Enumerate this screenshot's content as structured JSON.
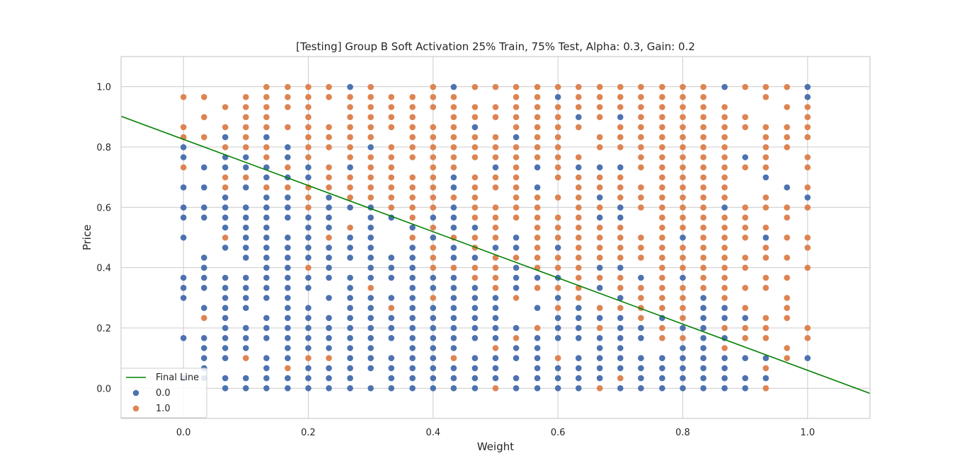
{
  "chart_data": {
    "type": "scatter",
    "title": "[Testing] Group B Soft Activation 25% Train, 75% Test, Alpha: 0.3, Gain: 0.2",
    "xlabel": "Weight",
    "ylabel": "Price",
    "xlim": [
      -0.1,
      1.1
    ],
    "ylim": [
      -0.1,
      1.1
    ],
    "xticks": [
      0.0,
      0.2,
      0.4,
      0.6,
      0.8,
      1.0
    ],
    "xtick_labels": [
      "0.0",
      "0.2",
      "0.4",
      "0.6",
      "0.8",
      "1.0"
    ],
    "yticks": [
      0.0,
      0.2,
      0.4,
      0.6,
      0.8,
      1.0
    ],
    "ytick_labels": [
      "0.0",
      "0.2",
      "0.4",
      "0.6",
      "0.8",
      "1.0"
    ],
    "grid": true,
    "legend_position": "lower-left",
    "background": "#ffffff",
    "grid_color": "#cccccc",
    "line": {
      "name": "Final Line",
      "color": "#008000",
      "x": [
        -0.1,
        1.1
      ],
      "y": [
        0.902,
        -0.017
      ]
    },
    "series": [
      {
        "name": "0.0",
        "color": "#4c72b0",
        "decision_rule": "below_line",
        "x_values": [
          0.0,
          0.033,
          0.067,
          0.1,
          0.133,
          0.167,
          0.2,
          0.233,
          0.267,
          0.3,
          0.333,
          0.367,
          0.4,
          0.433,
          0.467,
          0.5,
          0.533,
          0.567,
          0.6,
          0.633,
          0.667,
          0.7,
          0.733,
          0.767,
          0.8,
          0.833,
          0.867,
          0.9,
          0.933,
          0.967,
          1.0
        ],
        "y_grid_step": 0.0333,
        "y_range": [
          0.0,
          1.0
        ]
      },
      {
        "name": "1.0",
        "color": "#dd8452",
        "decision_rule": "above_line"
      }
    ]
  }
}
